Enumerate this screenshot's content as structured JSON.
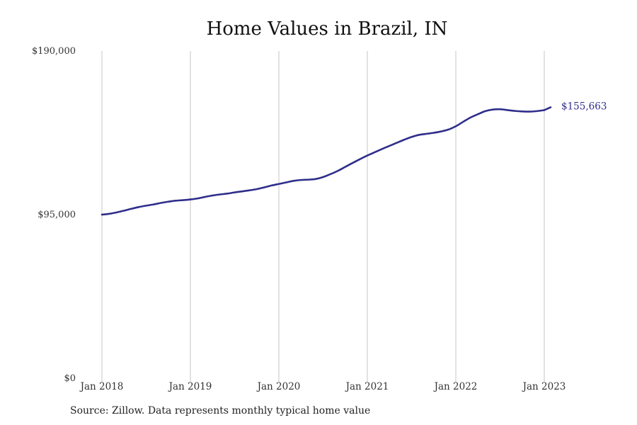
{
  "chart_data": {
    "type": "line",
    "title": "Home Values in Brazil, IN",
    "source": "Source: Zillow. Data represents monthly typical home value",
    "y_ticks": [
      {
        "value": 0,
        "label": "$0"
      },
      {
        "value": 95000,
        "label": "$95,000"
      },
      {
        "value": 190000,
        "label": "$190,000"
      }
    ],
    "ylim": [
      0,
      190000
    ],
    "x_ticks": [
      {
        "value": "2018-01",
        "label": "Jan 2018"
      },
      {
        "value": "2019-01",
        "label": "Jan 2019"
      },
      {
        "value": "2020-01",
        "label": "Jan 2020"
      },
      {
        "value": "2021-01",
        "label": "Jan 2021"
      },
      {
        "value": "2022-01",
        "label": "Jan 2022"
      },
      {
        "value": "2023-01",
        "label": "Jan 2023"
      }
    ],
    "grid": "vertical lines at year ticks",
    "series": [
      {
        "color": "#2f2e8b",
        "end_label": "$155,663",
        "points": [
          [
            "2018-01",
            95000
          ],
          [
            "2018-02",
            95500
          ],
          [
            "2018-03",
            96300
          ],
          [
            "2018-04",
            97300
          ],
          [
            "2018-05",
            98400
          ],
          [
            "2018-06",
            99400
          ],
          [
            "2018-07",
            100200
          ],
          [
            "2018-08",
            100900
          ],
          [
            "2018-09",
            101800
          ],
          [
            "2018-10",
            102500
          ],
          [
            "2018-11",
            103100
          ],
          [
            "2018-12",
            103400
          ],
          [
            "2019-01",
            103800
          ],
          [
            "2019-02",
            104400
          ],
          [
            "2019-03",
            105300
          ],
          [
            "2019-04",
            106100
          ],
          [
            "2019-05",
            106700
          ],
          [
            "2019-06",
            107200
          ],
          [
            "2019-07",
            107900
          ],
          [
            "2019-08",
            108500
          ],
          [
            "2019-09",
            109100
          ],
          [
            "2019-10",
            109800
          ],
          [
            "2019-11",
            110800
          ],
          [
            "2019-12",
            111900
          ],
          [
            "2020-01",
            112800
          ],
          [
            "2020-02",
            113700
          ],
          [
            "2020-03",
            114600
          ],
          [
            "2020-04",
            115100
          ],
          [
            "2020-05",
            115300
          ],
          [
            "2020-06",
            115700
          ],
          [
            "2020-07",
            116800
          ],
          [
            "2020-08",
            118500
          ],
          [
            "2020-09",
            120400
          ],
          [
            "2020-10",
            122700
          ],
          [
            "2020-11",
            125000
          ],
          [
            "2020-12",
            127200
          ],
          [
            "2021-01",
            129300
          ],
          [
            "2021-02",
            131200
          ],
          [
            "2021-03",
            133100
          ],
          [
            "2021-04",
            134900
          ],
          [
            "2021-05",
            136700
          ],
          [
            "2021-06",
            138500
          ],
          [
            "2021-07",
            140100
          ],
          [
            "2021-08",
            141300
          ],
          [
            "2021-09",
            141900
          ],
          [
            "2021-10",
            142500
          ],
          [
            "2021-11",
            143300
          ],
          [
            "2021-12",
            144400
          ],
          [
            "2022-01",
            146300
          ],
          [
            "2022-02",
            148900
          ],
          [
            "2022-03",
            151400
          ],
          [
            "2022-04",
            153300
          ],
          [
            "2022-05",
            155100
          ],
          [
            "2022-06",
            156000
          ],
          [
            "2022-07",
            156200
          ],
          [
            "2022-08",
            155700
          ],
          [
            "2022-09",
            155200
          ],
          [
            "2022-10",
            154900
          ],
          [
            "2022-11",
            154800
          ],
          [
            "2022-12",
            155100
          ],
          [
            "2023-01",
            155663
          ]
        ]
      }
    ]
  }
}
